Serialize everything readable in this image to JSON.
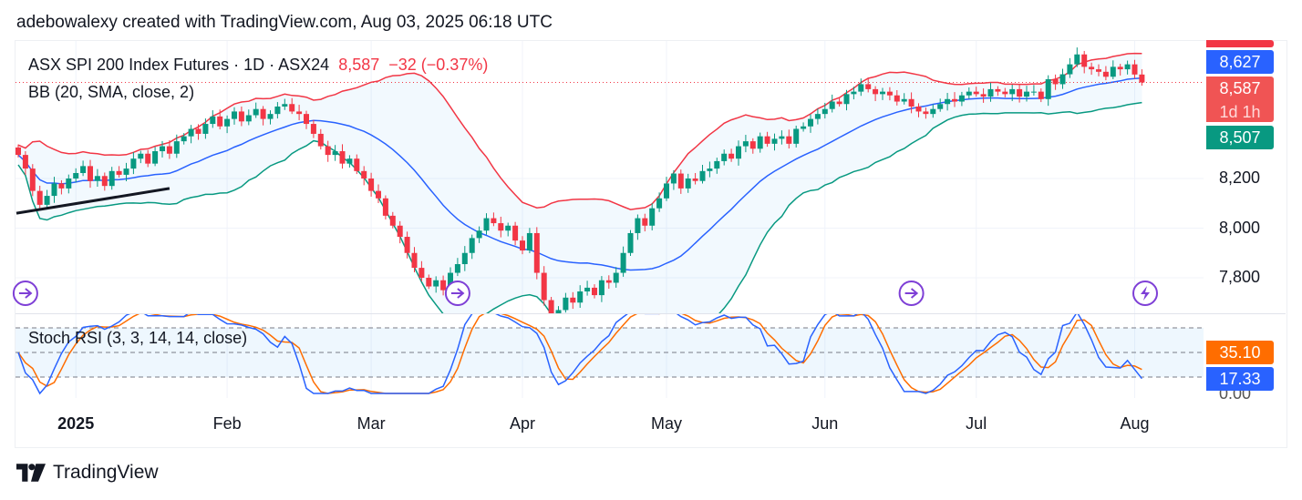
{
  "credit": "adebowalexy created with TradingView.com, Aug 03, 2025 06:18 UTC",
  "legend": {
    "symbol": "ASX SPI 200 Index Futures · 1D · ASX24",
    "last": "8,587",
    "change": "−32 (−0.37%)",
    "bb": "BB (20, SMA, close, 2)",
    "stoch": "Stoch RSI (3, 3, 14, 14, close)"
  },
  "price_labels": {
    "upper": "8,627",
    "last": "8,587",
    "countdown": "1d 1h",
    "lower": "8,507"
  },
  "stoch_labels": {
    "d": "35.10",
    "k": "17.33",
    "zero": "0.00"
  },
  "footer": {
    "logo_text": "TradingView"
  },
  "colors": {
    "up": "#089981",
    "down": "#F23645",
    "bb_upper": "#F23645",
    "bb_basis": "#2962FF",
    "bb_lower": "#089981",
    "stoch_k": "#2962FF",
    "stoch_d": "#FF6D00",
    "event": "#7E3FD6"
  },
  "chart_data": {
    "type": "candlestick",
    "title": "ASX SPI 200 Index Futures · 1D · ASX24",
    "y_ticks": [
      "8,200",
      "8,000",
      "7,800"
    ],
    "y_tick_values": [
      8200,
      8000,
      7800
    ],
    "x_ticks": [
      "2025",
      "Feb",
      "Mar",
      "Apr",
      "May",
      "Jun",
      "Jul",
      "Aug"
    ],
    "x_tick_index": [
      8,
      29,
      49,
      70,
      90,
      112,
      133,
      155
    ],
    "closes": [
      8295,
      8240,
      8150,
      8094,
      8130,
      8180,
      8160,
      8200,
      8222,
      8250,
      8190,
      8210,
      8170,
      8230,
      8215,
      8240,
      8280,
      8300,
      8260,
      8310,
      8330,
      8300,
      8350,
      8370,
      8400,
      8380,
      8420,
      8450,
      8410,
      8440,
      8470,
      8430,
      8455,
      8480,
      8440,
      8460,
      8490,
      8500,
      8470,
      8460,
      8420,
      8380,
      8330,
      8295,
      8310,
      8260,
      8280,
      8230,
      8200,
      8150,
      8120,
      8050,
      8010,
      7965,
      7900,
      7840,
      7800,
      7765,
      7790,
      7750,
      7820,
      7855,
      7900,
      7960,
      7990,
      8040,
      8020,
      7990,
      8010,
      7950,
      7910,
      7980,
      7820,
      7710,
      7640,
      7670,
      7720,
      7700,
      7745,
      7760,
      7730,
      7790,
      7780,
      7820,
      7900,
      7980,
      8040,
      8010,
      8080,
      8120,
      8180,
      8220,
      8160,
      8200,
      8190,
      8230,
      8240,
      8270,
      8300,
      8280,
      8330,
      8350,
      8320,
      8370,
      8340,
      8360,
      8370,
      8340,
      8400,
      8410,
      8440,
      8460,
      8480,
      8510,
      8500,
      8540,
      8550,
      8580,
      8560,
      8540,
      8550,
      8535,
      8510,
      8520,
      8490,
      8470,
      8460,
      8480,
      8500,
      8520,
      8510,
      8535,
      8550,
      8540,
      8530,
      8560,
      8550,
      8540,
      8560,
      8530,
      8550,
      8550,
      8520,
      8600,
      8580,
      8620,
      8660,
      8700,
      8650,
      8640,
      8630,
      8610,
      8650,
      8640,
      8660,
      8619,
      8587
    ],
    "bollinger": {
      "period": 20,
      "stddev": 2
    },
    "stoch_rsi": {
      "k": 3,
      "d": 3,
      "rsi": 14,
      "stoch": 14,
      "levels": [
        80,
        50,
        20
      ],
      "range": [
        0,
        100
      ]
    },
    "trendline": {
      "from": [
        0,
        8060
      ],
      "to": [
        21,
        8160
      ]
    },
    "events_index": [
      1,
      61,
      124,
      157
    ]
  }
}
